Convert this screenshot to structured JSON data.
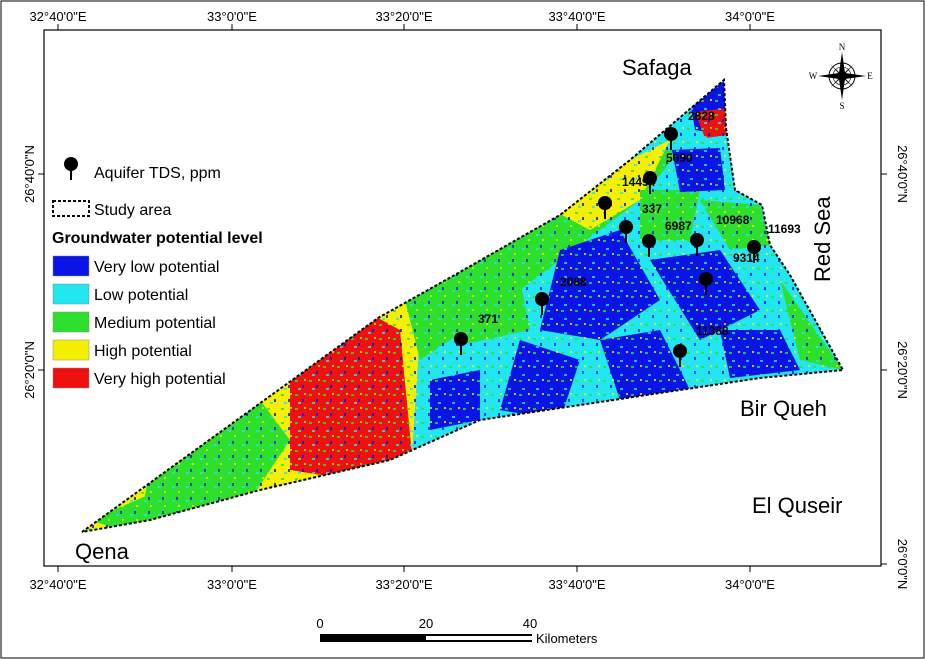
{
  "map": {
    "top_ticks": [
      "32°40'0\"E",
      "33°0'0\"E",
      "33°20'0\"E",
      "33°40'0\"E",
      "34°0'0\"E"
    ],
    "bottom_ticks": [
      "32°40'0\"E",
      "33°0'0\"E",
      "33°20'0\"E",
      "33°40'0\"E",
      "34°0'0\"E"
    ],
    "left_ticks": [
      "26°40'0\"N",
      "26°20'0\"N"
    ],
    "right_ticks": [
      "26°40'0\"N",
      "26°20'0\"N",
      "26°0'0\"N"
    ],
    "places": {
      "safaga": "Safaga",
      "red_sea": "Red Sea",
      "bir_queh": "Bir Queh",
      "el_quseir": "El Quseir",
      "qena": "Qena"
    },
    "tds_labels": [
      "2828",
      "5690",
      "14494",
      "337",
      "6987",
      "10968",
      "11693",
      "9314",
      "2088",
      "371",
      "11388"
    ]
  },
  "legend": {
    "aquifer": "Aquifer TDS, ppm",
    "study_area": "Study area",
    "title": "Groundwater potential level",
    "classes": [
      {
        "label": "Very low potential",
        "color": "#0a14e6"
      },
      {
        "label": "Low potential",
        "color": "#22e6f0"
      },
      {
        "label": "Medium potential",
        "color": "#2ee02e"
      },
      {
        "label": "High potential",
        "color": "#f5f000"
      },
      {
        "label": "Very high potential",
        "color": "#f01010"
      }
    ]
  },
  "compass": {
    "n": "N",
    "s": "S",
    "e": "E",
    "w": "W"
  },
  "scale": {
    "t0": "0",
    "t20": "20",
    "t40": "40",
    "unit": "Kilometers"
  }
}
